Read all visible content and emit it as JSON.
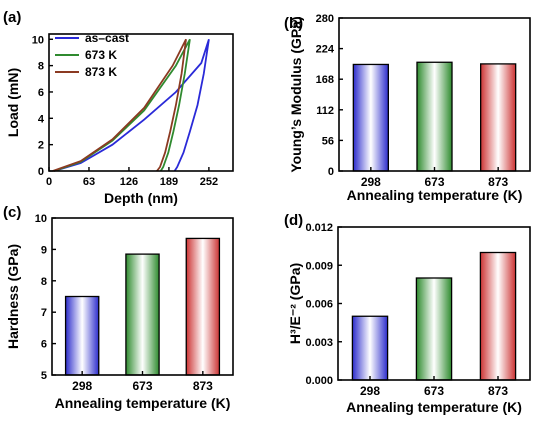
{
  "chart_data": [
    {
      "panel": "(a)",
      "type": "line",
      "xlabel": "Depth (nm)",
      "ylabel": "Load (mN)",
      "xlim": [
        0,
        290
      ],
      "ylim": [
        0,
        10.4
      ],
      "xticks": [
        0,
        63,
        126,
        189,
        252
      ],
      "yticks": [
        0,
        2,
        4,
        6,
        8,
        10
      ],
      "legend_position": "top-left",
      "series": [
        {
          "name": "as–cast",
          "color": "#2a2ad8",
          "loading": [
            [
              8,
              0
            ],
            [
              50,
              0.6
            ],
            [
              100,
              2.0
            ],
            [
              150,
              3.9
            ],
            [
              200,
              6.0
            ],
            [
              240,
              8.2
            ],
            [
              252,
              10.0
            ]
          ],
          "unloading": [
            [
              252,
              10.0
            ],
            [
              244,
              7.4
            ],
            [
              234,
              5.0
            ],
            [
              222,
              3.0
            ],
            [
              212,
              1.4
            ],
            [
              202,
              0.3
            ],
            [
              198,
              0
            ]
          ]
        },
        {
          "name": "673 K",
          "color": "#2f8a2f",
          "loading": [
            [
              8,
              0
            ],
            [
              50,
              0.7
            ],
            [
              100,
              2.3
            ],
            [
              150,
              4.6
            ],
            [
              200,
              8.0
            ],
            [
              222,
              10.0
            ]
          ],
          "unloading": [
            [
              222,
              10.0
            ],
            [
              214,
              7.4
            ],
            [
              205,
              5.0
            ],
            [
              196,
              3.0
            ],
            [
              188,
              1.4
            ],
            [
              180,
              0.3
            ],
            [
              176,
              0
            ]
          ]
        },
        {
          "name": "873 K",
          "color": "#8b3a22",
          "loading": [
            [
              6,
              0
            ],
            [
              50,
              0.75
            ],
            [
              100,
              2.4
            ],
            [
              150,
              4.8
            ],
            [
              195,
              8.0
            ],
            [
              216,
              10.0
            ]
          ],
          "unloading": [
            [
              216,
              10.0
            ],
            [
              209,
              7.4
            ],
            [
              200,
              5.0
            ],
            [
              191,
              3.0
            ],
            [
              183,
              1.4
            ],
            [
              175,
              0.3
            ],
            [
              170,
              0
            ]
          ]
        }
      ]
    },
    {
      "panel": "(b)",
      "type": "bar",
      "xlabel": "Annealing temperature (K)",
      "ylabel": "Young’s Modulus (GPa)",
      "ylim": [
        0,
        280
      ],
      "yticks": [
        "0",
        "56",
        "112",
        "168",
        "224",
        "280"
      ],
      "categories": [
        "298",
        "673",
        "873"
      ],
      "values": [
        195,
        199,
        196
      ],
      "colors": [
        "#2d2dcc",
        "#2e8b2e",
        "#cc3333"
      ]
    },
    {
      "panel": "(c)",
      "type": "bar",
      "xlabel": "Annealing temperature (K)",
      "ylabel": "Hardness (GPa)",
      "ylim": [
        5,
        10
      ],
      "yticks": [
        "5",
        "6",
        "7",
        "8",
        "9",
        "10"
      ],
      "categories": [
        "298",
        "673",
        "873"
      ],
      "values": [
        7.5,
        8.85,
        9.35
      ],
      "colors": [
        "#2d2dcc",
        "#2e8b2e",
        "#cc3333"
      ]
    },
    {
      "panel": "(d)",
      "type": "bar",
      "xlabel": "Annealing temperature (K)",
      "ylabel": "H³/E⁻² (GPa)",
      "ylim": [
        0,
        0.012
      ],
      "yticks": [
        "0.000",
        "0.003",
        "0.006",
        "0.009",
        "0.012"
      ],
      "categories": [
        "298",
        "673",
        "873"
      ],
      "values": [
        0.005,
        0.008,
        0.01
      ],
      "colors": [
        "#2d2dcc",
        "#2e8b2e",
        "#cc3333"
      ]
    }
  ]
}
